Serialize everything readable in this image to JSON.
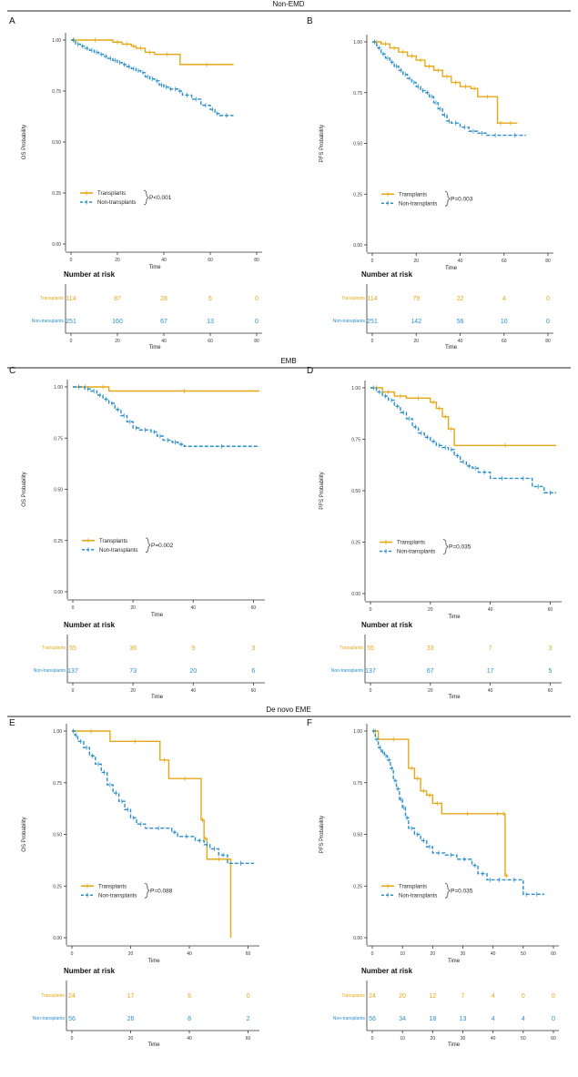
{
  "colors": {
    "transplants": "#E6A817",
    "non_transplants": "#2A8FCC",
    "axis": "#333333",
    "divider": "#222222"
  },
  "sections": [
    {
      "title": "Non-EMD"
    },
    {
      "title": "EMB"
    },
    {
      "title": "De novo EME"
    }
  ],
  "chart_data": [
    {
      "type": "line",
      "panel": "A",
      "ylabel": "OS Probability",
      "xlabel": "Time",
      "xlim": [
        0,
        80
      ],
      "xticks": [
        0,
        20,
        40,
        60,
        80
      ],
      "ylim": [
        0,
        1
      ],
      "yticks": [
        "0.00",
        "0.25",
        "0.50",
        "0.75",
        "1.00"
      ],
      "legend": [
        "Transplants",
        "Non-transplants"
      ],
      "pvalue": "P<0.001",
      "series": [
        {
          "name": "Transplants",
          "x": [
            0,
            3,
            18,
            22,
            26,
            28,
            32,
            36,
            47,
            70
          ],
          "y": [
            1,
            1,
            0.99,
            0.98,
            0.97,
            0.96,
            0.94,
            0.93,
            0.88,
            0.88
          ]
        },
        {
          "name": "Non-transplants",
          "x": [
            0,
            2,
            4,
            6,
            8,
            10,
            12,
            14,
            16,
            18,
            20,
            22,
            24,
            26,
            28,
            30,
            32,
            34,
            36,
            38,
            40,
            42,
            44,
            46,
            48,
            52,
            56,
            60,
            62,
            64,
            70
          ],
          "y": [
            1,
            0.98,
            0.97,
            0.96,
            0.95,
            0.94,
            0.93,
            0.92,
            0.91,
            0.9,
            0.89,
            0.88,
            0.87,
            0.86,
            0.85,
            0.84,
            0.82,
            0.81,
            0.8,
            0.78,
            0.77,
            0.76,
            0.76,
            0.75,
            0.73,
            0.71,
            0.68,
            0.66,
            0.64,
            0.63,
            0.63
          ]
        }
      ],
      "risk": {
        "title": "Number at risk",
        "xlabel": "Time",
        "rows": [
          {
            "label": "Transplants",
            "values": [
              "114",
              "87",
              "28",
              "6",
              "0"
            ]
          },
          {
            "label": "Non-transplants",
            "values": [
              "251",
              "160",
              "67",
              "13",
              "0"
            ]
          }
        ]
      }
    },
    {
      "type": "line",
      "panel": "B",
      "ylabel": "PFS Probability",
      "xlabel": "Time",
      "xlim": [
        0,
        80
      ],
      "xticks": [
        0,
        20,
        40,
        60,
        80
      ],
      "ylim": [
        0,
        1
      ],
      "yticks": [
        "0.00",
        "0.25",
        "0.50",
        "0.75",
        "1.00"
      ],
      "legend": [
        "Transplants",
        "Non-transplants"
      ],
      "pvalue": "P=0.003",
      "series": [
        {
          "name": "Transplants",
          "x": [
            0,
            4,
            8,
            12,
            16,
            20,
            24,
            28,
            32,
            36,
            40,
            45,
            48,
            57,
            60,
            66
          ],
          "y": [
            1,
            0.99,
            0.97,
            0.95,
            0.93,
            0.91,
            0.88,
            0.86,
            0.83,
            0.8,
            0.78,
            0.77,
            0.73,
            0.6,
            0.6,
            0.6
          ]
        },
        {
          "name": "Non-transplants",
          "x": [
            0,
            2,
            4,
            6,
            8,
            10,
            12,
            14,
            16,
            18,
            20,
            22,
            24,
            26,
            28,
            30,
            32,
            34,
            36,
            40,
            44,
            48,
            52,
            60,
            70
          ],
          "y": [
            1,
            0.97,
            0.94,
            0.92,
            0.9,
            0.88,
            0.86,
            0.84,
            0.82,
            0.8,
            0.78,
            0.76,
            0.75,
            0.73,
            0.7,
            0.67,
            0.64,
            0.61,
            0.6,
            0.58,
            0.56,
            0.55,
            0.54,
            0.54,
            0.54
          ]
        }
      ],
      "risk": {
        "title": "Number at risk",
        "xlabel": "Time",
        "rows": [
          {
            "label": "Transplants",
            "values": [
              "114",
              "79",
              "22",
              "4",
              "0"
            ]
          },
          {
            "label": "Non-transplants",
            "values": [
              "251",
              "142",
              "56",
              "10",
              "0"
            ]
          }
        ]
      }
    },
    {
      "type": "line",
      "panel": "C",
      "ylabel": "OS Probability",
      "xlabel": "Time",
      "xlim": [
        0,
        62
      ],
      "xticks": [
        0,
        20,
        40,
        60
      ],
      "ylim": [
        0,
        1
      ],
      "yticks": [
        "0.00",
        "0.25",
        "0.50",
        "0.75",
        "1.00"
      ],
      "legend": [
        "Transplants",
        "Non-transplants"
      ],
      "pvalue": "P=0.002",
      "series": [
        {
          "name": "Transplants",
          "x": [
            0,
            8,
            12,
            62
          ],
          "y": [
            1,
            1,
            0.98,
            0.98
          ]
        },
        {
          "name": "Non-transplants",
          "x": [
            0,
            4,
            6,
            8,
            10,
            12,
            14,
            16,
            18,
            20,
            22,
            26,
            28,
            30,
            33,
            35,
            37,
            62
          ],
          "y": [
            1,
            0.99,
            0.98,
            0.96,
            0.94,
            0.92,
            0.89,
            0.86,
            0.83,
            0.8,
            0.79,
            0.78,
            0.76,
            0.74,
            0.73,
            0.72,
            0.71,
            0.71
          ]
        }
      ],
      "risk": {
        "title": "Number at risk",
        "xlabel": "Time",
        "rows": [
          {
            "label": "Transplants",
            "values": [
              "55",
              "36",
              "9",
              "3"
            ]
          },
          {
            "label": "Non-transplants",
            "values": [
              "137",
              "73",
              "20",
              "6"
            ]
          }
        ]
      }
    },
    {
      "type": "line",
      "panel": "D",
      "ylabel": "PFS Probability",
      "xlabel": "Time",
      "xlim": [
        0,
        62
      ],
      "xticks": [
        0,
        20,
        40,
        60
      ],
      "ylim": [
        0,
        1
      ],
      "yticks": [
        "0.00",
        "0.25",
        "0.50",
        "0.75",
        "1.00"
      ],
      "legend": [
        "Transplants",
        "Non-transplants"
      ],
      "pvalue": "P=0.035",
      "series": [
        {
          "name": "Transplants",
          "x": [
            0,
            4,
            8,
            12,
            20,
            22,
            24,
            26,
            28,
            62
          ],
          "y": [
            1,
            0.98,
            0.96,
            0.95,
            0.93,
            0.9,
            0.86,
            0.8,
            0.72,
            0.72
          ]
        },
        {
          "name": "Non-transplants",
          "x": [
            0,
            2,
            4,
            6,
            8,
            10,
            12,
            14,
            16,
            18,
            20,
            22,
            24,
            26,
            28,
            30,
            32,
            34,
            36,
            40,
            48,
            54,
            58,
            62
          ],
          "y": [
            1,
            0.98,
            0.96,
            0.94,
            0.91,
            0.88,
            0.85,
            0.81,
            0.78,
            0.76,
            0.74,
            0.72,
            0.71,
            0.7,
            0.67,
            0.64,
            0.62,
            0.61,
            0.59,
            0.56,
            0.56,
            0.52,
            0.49,
            0.49
          ]
        }
      ],
      "risk": {
        "title": "Number at risk",
        "xlabel": "Time",
        "rows": [
          {
            "label": "Transplants",
            "values": [
              "55",
              "33",
              "7",
              "3"
            ]
          },
          {
            "label": "Non-transplants",
            "values": [
              "137",
              "67",
              "17",
              "5"
            ]
          }
        ]
      }
    },
    {
      "type": "line",
      "panel": "E",
      "ylabel": "OS Probability",
      "xlabel": "Time",
      "xlim": [
        0,
        62
      ],
      "xticks": [
        0,
        20,
        40,
        60
      ],
      "ylim": [
        0,
        1
      ],
      "yticks": [
        "0.00",
        "0.25",
        "0.50",
        "0.75",
        "1.00"
      ],
      "legend": [
        "Transplants",
        "Non-transplants"
      ],
      "pvalue": "P=0.088",
      "series": [
        {
          "name": "Transplants",
          "x": [
            0,
            13,
            30,
            33,
            44,
            45,
            46,
            54,
            54.1
          ],
          "y": [
            1,
            0.95,
            0.86,
            0.77,
            0.57,
            0.48,
            0.38,
            0.38,
            0
          ]
        },
        {
          "name": "Non-transplants",
          "x": [
            0,
            1,
            2,
            4,
            6,
            8,
            10,
            12,
            14,
            16,
            18,
            20,
            22,
            25,
            34,
            36,
            42,
            45,
            47,
            50,
            53,
            62
          ],
          "y": [
            1,
            0.98,
            0.95,
            0.92,
            0.88,
            0.84,
            0.8,
            0.74,
            0.7,
            0.66,
            0.62,
            0.58,
            0.55,
            0.53,
            0.51,
            0.49,
            0.47,
            0.45,
            0.43,
            0.4,
            0.36,
            0.36
          ]
        }
      ],
      "risk": {
        "title": "Number at risk",
        "xlabel": "Time",
        "rows": [
          {
            "label": "Transplants",
            "values": [
              "24",
              "17",
              "6",
              "0"
            ]
          },
          {
            "label": "Non-transplants",
            "values": [
              "56",
              "26",
              "8",
              "2"
            ]
          }
        ]
      }
    },
    {
      "type": "line",
      "panel": "F",
      "ylabel": "PFS Probability",
      "xlabel": "Time",
      "xlim": [
        0,
        60
      ],
      "xticks": [
        0,
        10,
        20,
        30,
        40,
        50,
        60
      ],
      "ylim": [
        0,
        1
      ],
      "yticks": [
        "0.00",
        "0.25",
        "0.50",
        "0.75",
        "1.00"
      ],
      "legend": [
        "Transplants",
        "Non-transplants"
      ],
      "pvalue": "P=0.035",
      "series": [
        {
          "name": "Transplants",
          "x": [
            0,
            2,
            12,
            14,
            16,
            18,
            20,
            23,
            40,
            43,
            44,
            45
          ],
          "y": [
            1,
            0.96,
            0.82,
            0.77,
            0.71,
            0.69,
            0.65,
            0.6,
            0.6,
            0.6,
            0.3,
            0.3
          ]
        },
        {
          "name": "Non-transplants",
          "x": [
            0,
            1,
            2,
            3,
            4,
            5,
            6,
            7,
            8,
            9,
            10,
            11,
            12,
            14,
            16,
            18,
            20,
            24,
            28,
            33,
            35,
            38,
            40,
            44,
            50,
            52,
            57
          ],
          "y": [
            1,
            0.96,
            0.92,
            0.9,
            0.88,
            0.86,
            0.82,
            0.76,
            0.72,
            0.67,
            0.63,
            0.58,
            0.53,
            0.5,
            0.47,
            0.44,
            0.41,
            0.4,
            0.38,
            0.35,
            0.31,
            0.28,
            0.28,
            0.28,
            0.21,
            0.21,
            0.21
          ]
        }
      ],
      "risk": {
        "title": "Number at risk",
        "xlabel": "Time",
        "rows": [
          {
            "label": "Transplants",
            "values": [
              "24",
              "20",
              "12",
              "7",
              "4",
              "0",
              "0"
            ]
          },
          {
            "label": "Non-transplants",
            "values": [
              "56",
              "34",
              "18",
              "13",
              "4",
              "4",
              "0"
            ]
          }
        ]
      }
    }
  ]
}
